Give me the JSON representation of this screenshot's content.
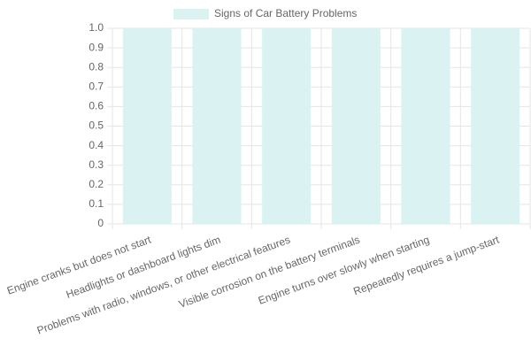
{
  "chart_data": {
    "type": "bar",
    "categories": [
      "Engine cranks but does not start",
      "Headlights or dashboard lights dim",
      "Problems with radio, windows, or other electrical features",
      "Visible corrosion on the battery terminals",
      "Engine turns over slowly when starting",
      "Repeatedly requires a jump-start"
    ],
    "series": [
      {
        "name": "Signs of Car Battery Problems",
        "color": "#dbf2f2",
        "values": [
          1,
          1,
          1,
          1,
          1,
          1
        ]
      }
    ],
    "ylim": [
      0,
      1
    ],
    "yticks": [
      0,
      0.1,
      0.2,
      0.3,
      0.4,
      0.5,
      0.6,
      0.7,
      0.8,
      0.9,
      {
        "value": 1,
        "label": "1.0"
      }
    ],
    "grid": true,
    "legend": "top"
  }
}
